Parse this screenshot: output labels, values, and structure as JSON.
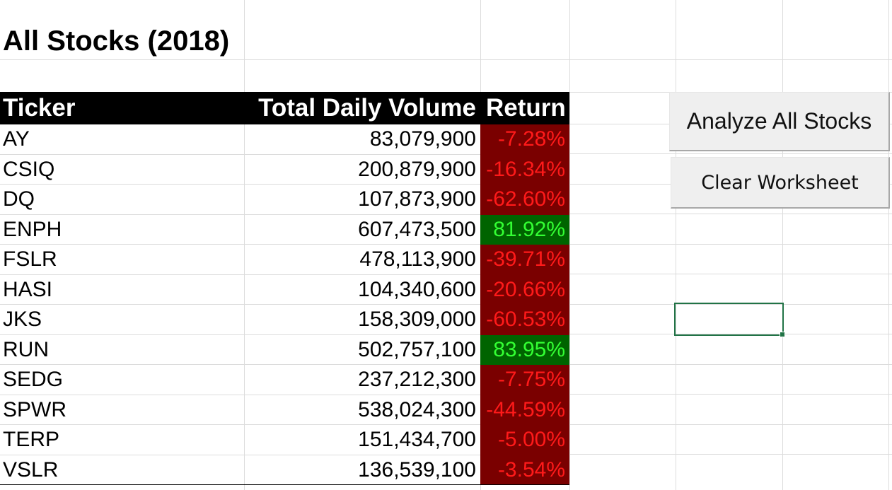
{
  "sheet": {
    "title": "All Stocks (2018)",
    "headers": {
      "ticker": "Ticker",
      "volume": "Total Daily Volume",
      "return": "Return"
    },
    "rows": [
      {
        "ticker": "AY",
        "volume": "83,079,900",
        "return": "-7.28%",
        "status": "negative"
      },
      {
        "ticker": "CSIQ",
        "volume": "200,879,900",
        "return": "-16.34%",
        "status": "negative"
      },
      {
        "ticker": "DQ",
        "volume": "107,873,900",
        "return": "-62.60%",
        "status": "negative"
      },
      {
        "ticker": "ENPH",
        "volume": "607,473,500",
        "return": "81.92%",
        "status": "positive"
      },
      {
        "ticker": "FSLR",
        "volume": "478,113,900",
        "return": "-39.71%",
        "status": "negative"
      },
      {
        "ticker": "HASI",
        "volume": "104,340,600",
        "return": "-20.66%",
        "status": "negative"
      },
      {
        "ticker": "JKS",
        "volume": "158,309,000",
        "return": "-60.53%",
        "status": "negative"
      },
      {
        "ticker": "RUN",
        "volume": "502,757,100",
        "return": "83.95%",
        "status": "positive"
      },
      {
        "ticker": "SEDG",
        "volume": "237,212,300",
        "return": "-7.75%",
        "status": "negative"
      },
      {
        "ticker": "SPWR",
        "volume": "538,024,300",
        "return": "-44.59%",
        "status": "negative"
      },
      {
        "ticker": "TERP",
        "volume": "151,434,700",
        "return": "-5.00%",
        "status": "negative"
      },
      {
        "ticker": "VSLR",
        "volume": "136,539,100",
        "return": "-3.54%",
        "status": "negative"
      }
    ]
  },
  "buttons": {
    "analyze_label": "Analyze All Stocks",
    "clear_label": "Clear Worksheet"
  },
  "colors": {
    "negative_fill": "#7a0000",
    "negative_text": "#ff1a1a",
    "positive_fill": "#006400",
    "positive_text": "#33ff33",
    "selection_border": "#217346",
    "header_fill": "#000000"
  }
}
